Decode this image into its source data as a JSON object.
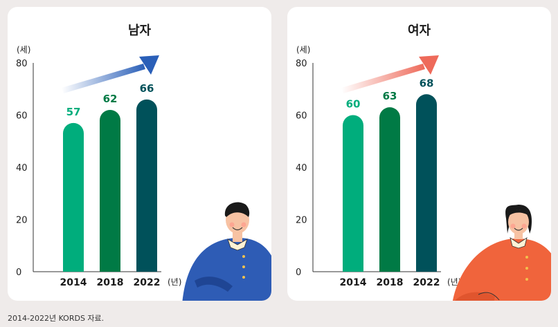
{
  "chart_data": [
    {
      "type": "bar",
      "title": "남자",
      "unit_label": "(세)",
      "x_unit_label": "(년)",
      "categories": [
        "2014",
        "2018",
        "2022"
      ],
      "values": [
        57,
        62,
        66
      ],
      "value_labels": [
        "57",
        "62",
        "66"
      ],
      "yticks": [
        "0",
        "20",
        "40",
        "60",
        "80"
      ],
      "ylim": [
        0,
        80
      ],
      "bar_colors": [
        "#00ad7c",
        "#007a45",
        "#00515a"
      ],
      "arrow_color": "#2a5fb8",
      "illustration": "man-avatar-icon"
    },
    {
      "type": "bar",
      "title": "여자",
      "unit_label": "(세)",
      "x_unit_label": "(년)",
      "categories": [
        "2014",
        "2018",
        "2022"
      ],
      "values": [
        60,
        63,
        68
      ],
      "value_labels": [
        "60",
        "63",
        "68"
      ],
      "yticks": [
        "0",
        "20",
        "40",
        "60",
        "80"
      ],
      "ylim": [
        0,
        80
      ],
      "bar_colors": [
        "#00ad7c",
        "#007a45",
        "#00515a"
      ],
      "arrow_color": "#ee6a5a",
      "illustration": "woman-avatar-icon"
    }
  ],
  "source_note": "2014-2022년 KORDS 자료."
}
